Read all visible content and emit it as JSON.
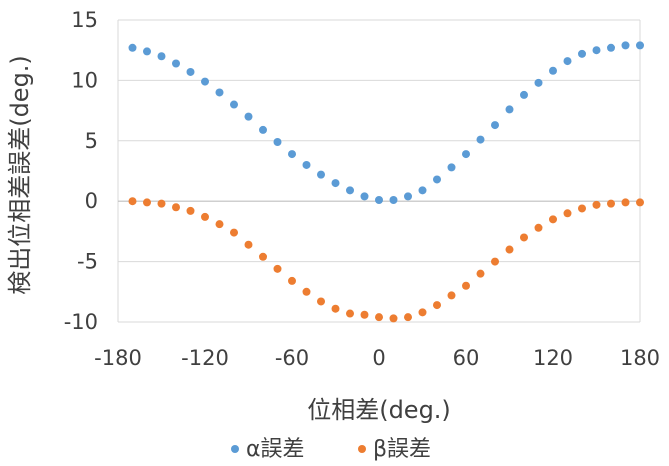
{
  "chart_data": {
    "type": "scatter",
    "title": "",
    "xlabel": "位相差(deg.)",
    "ylabel": "検出位相差誤差(deg.)",
    "xlim": [
      -180,
      180
    ],
    "ylim": [
      -10,
      15
    ],
    "xticks": [
      -180,
      -120,
      -60,
      0,
      60,
      120,
      180
    ],
    "yticks": [
      -10,
      -5,
      0,
      5,
      10,
      15
    ],
    "xtick_labels": [
      "-180",
      "-120",
      "-60",
      "0",
      "60",
      "120",
      "180"
    ],
    "ytick_labels": [
      "-10",
      "-5",
      "0",
      "5",
      "10",
      "15"
    ],
    "grid": "horizontal",
    "legend_position": "bottom",
    "series": [
      {
        "name": "α誤差",
        "color": "#5B9BD5",
        "x": [
          -170,
          -160,
          -150,
          -140,
          -130,
          -120,
          -110,
          -100,
          -90,
          -80,
          -70,
          -60,
          -50,
          -40,
          -30,
          -20,
          -10,
          0,
          10,
          20,
          30,
          40,
          50,
          60,
          70,
          80,
          90,
          100,
          110,
          120,
          130,
          140,
          150,
          160,
          170,
          180
        ],
        "y": [
          12.7,
          12.4,
          12.0,
          11.4,
          10.7,
          9.9,
          9.0,
          8.0,
          7.0,
          5.9,
          4.9,
          3.9,
          3.0,
          2.2,
          1.5,
          0.9,
          0.4,
          0.1,
          0.1,
          0.4,
          0.9,
          1.8,
          2.8,
          3.9,
          5.1,
          6.3,
          7.6,
          8.8,
          9.8,
          10.8,
          11.6,
          12.2,
          12.5,
          12.7,
          12.9,
          12.9
        ]
      },
      {
        "name": "β誤差",
        "color": "#ED7D31",
        "x": [
          -170,
          -160,
          -150,
          -140,
          -130,
          -120,
          -110,
          -100,
          -90,
          -80,
          -70,
          -60,
          -50,
          -40,
          -30,
          -20,
          -10,
          0,
          10,
          20,
          30,
          40,
          50,
          60,
          70,
          80,
          90,
          100,
          110,
          120,
          130,
          140,
          150,
          160,
          170,
          180
        ],
        "y": [
          0.0,
          -0.1,
          -0.2,
          -0.5,
          -0.8,
          -1.3,
          -1.9,
          -2.6,
          -3.6,
          -4.6,
          -5.6,
          -6.6,
          -7.5,
          -8.3,
          -8.9,
          -9.3,
          -9.4,
          -9.6,
          -9.7,
          -9.6,
          -9.2,
          -8.6,
          -7.8,
          -7.0,
          -6.0,
          -5.0,
          -4.0,
          -3.0,
          -2.2,
          -1.5,
          -1.0,
          -0.6,
          -0.3,
          -0.2,
          -0.1,
          -0.1
        ]
      }
    ]
  }
}
